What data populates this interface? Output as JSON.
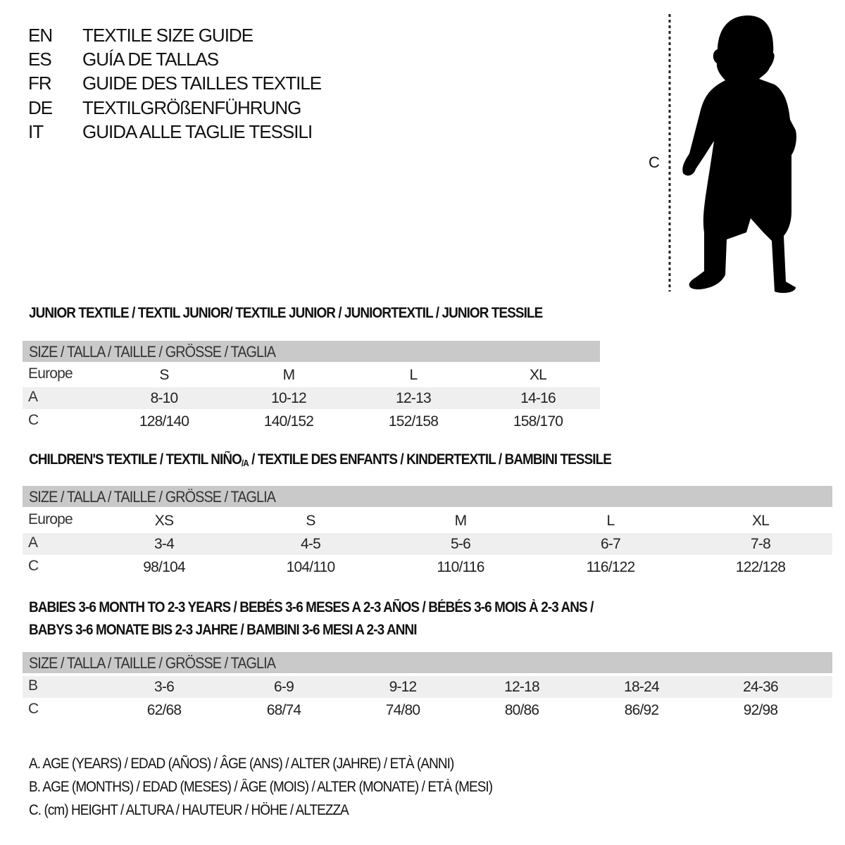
{
  "titles": [
    {
      "code": "EN",
      "text": "TEXTILE SIZE GUIDE"
    },
    {
      "code": "ES",
      "text": "GUÍA DE TALLAS"
    },
    {
      "code": "FR",
      "text": "GUIDE DES TAILLES TEXTILE"
    },
    {
      "code": "DE",
      "text": "TEXTILGRÖßENFÜHRUNG"
    },
    {
      "code": "IT",
      "text": "GUIDA ALLE TAGLIE TESSILI"
    }
  ],
  "figure": {
    "measure_label": "C",
    "icon": "child-silhouette-icon"
  },
  "size_header": "SIZE / TALLA / TAILLE / GRÖSSE / TAGLIA",
  "junior": {
    "heading": "JUNIOR TEXTILE / TEXTIL JUNIOR/ TEXTILE JUNIOR / JUNIORTEXTIL / JUNIOR TESSILE",
    "rows": [
      {
        "label": "Europe",
        "values": [
          "S",
          "M",
          "L",
          "XL"
        ]
      },
      {
        "label": "A",
        "values": [
          "8-10",
          "10-12",
          "12-13",
          "14-16"
        ]
      },
      {
        "label": "C",
        "values": [
          "128/140",
          "140/152",
          "152/158",
          "158/170"
        ]
      }
    ]
  },
  "children": {
    "heading_a": "CHILDREN'S TEXTILE / TEXTIL NIÑO",
    "heading_sub": "/A",
    "heading_b": " / TEXTILE DES ENFANTS / KINDERTEXTIL / BAMBINI TESSILE",
    "rows": [
      {
        "label": "Europe",
        "values": [
          "XS",
          "S",
          "M",
          "L",
          "XL"
        ]
      },
      {
        "label": "A",
        "values": [
          "3-4",
          "4-5",
          "5-6",
          "6-7",
          "7-8"
        ]
      },
      {
        "label": "C",
        "values": [
          "98/104",
          "104/110",
          "110/116",
          "116/122",
          "122/128"
        ]
      }
    ]
  },
  "babies": {
    "heading_line1": "BABIES 3-6 MONTH TO 2-3 YEARS / BEBÉS 3-6 MESES A 2-3 AÑOS / BÉBÉS 3-6 MOIS À 2-3 ANS /",
    "heading_line2": "BABYS 3-6 MONATE BIS 2-3 JAHRE / BAMBINI 3-6 MESI A 2-3 ANNI",
    "rows": [
      {
        "label": "B",
        "values": [
          "3-6",
          "6-9",
          "9-12",
          "12-18",
          "18-24",
          "24-36"
        ]
      },
      {
        "label": "C",
        "values": [
          "62/68",
          "68/74",
          "74/80",
          "80/86",
          "86/92",
          "92/98"
        ]
      }
    ]
  },
  "legend": [
    "A. AGE (YEARS) / EDAD (AÑOS) / ÂGE (ANS) / ALTER (JAHRE) / ETÀ (ANNI)",
    "B. AGE (MONTHS) / EDAD (MESES) / ÂGE (MOIS) / ALTER (MONATE) / ETÀ (MESI)",
    "C. (cm) HEIGHT / ALTURA / HAUTEUR / HÖHE / ALTEZZA"
  ],
  "colors": {
    "header_band": "#c9c9c9",
    "alt_row": "#efefef",
    "text": "#111111"
  }
}
